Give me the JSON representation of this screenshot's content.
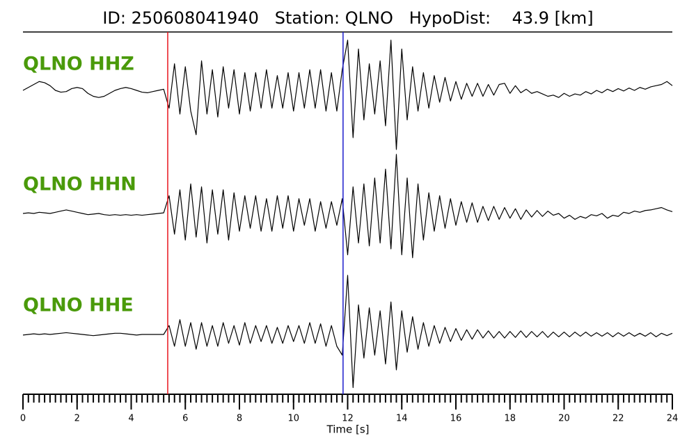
{
  "chart_data": {
    "type": "line",
    "title": "ID: 250608041940   Station: QLNO   HypoDist:    43.9 [km]",
    "x_label": "Time [s]",
    "xlim": [
      0,
      24
    ],
    "xticks": [
      0,
      2,
      4,
      6,
      8,
      10,
      12,
      14,
      16,
      18,
      20,
      22,
      24
    ],
    "minor_tick_step": 0.2,
    "label_color": "#4a9a0a",
    "picks": [
      {
        "time": 5.35,
        "color": "#e8141c"
      },
      {
        "time": 11.83,
        "color": "#1c1ccc"
      }
    ],
    "x": [
      0,
      0.2,
      0.4,
      0.6,
      0.8,
      1,
      1.2,
      1.4,
      1.6,
      1.8,
      2,
      2.2,
      2.4,
      2.6,
      2.8,
      3,
      3.2,
      3.4,
      3.6,
      3.8,
      4,
      4.2,
      4.4,
      4.6,
      4.8,
      5,
      5.2,
      5.4,
      5.6,
      5.8,
      6,
      6.2,
      6.4,
      6.6,
      6.8,
      7,
      7.2,
      7.4,
      7.6,
      7.8,
      8,
      8.2,
      8.4,
      8.6,
      8.8,
      9,
      9.2,
      9.4,
      9.6,
      9.8,
      10,
      10.2,
      10.4,
      10.6,
      10.8,
      11,
      11.2,
      11.4,
      11.6,
      11.8,
      12,
      12.2,
      12.4,
      12.6,
      12.8,
      13,
      13.2,
      13.4,
      13.6,
      13.8,
      14,
      14.2,
      14.4,
      14.6,
      14.8,
      15,
      15.2,
      15.4,
      15.6,
      15.8,
      16,
      16.2,
      16.4,
      16.6,
      16.8,
      17,
      17.2,
      17.4,
      17.6,
      17.8,
      18,
      18.2,
      18.4,
      18.6,
      18.8,
      19,
      19.2,
      19.4,
      19.6,
      19.8,
      20,
      20.2,
      20.4,
      20.6,
      20.8,
      21,
      21.2,
      21.4,
      21.6,
      21.8,
      22,
      22.2,
      22.4,
      22.6,
      22.8,
      23,
      23.2,
      23.4,
      23.6,
      23.8,
      24
    ],
    "series": [
      {
        "name": "QLNO HHZ",
        "color": "#000000",
        "values": [
          0.0,
          0.05,
          0.1,
          0.15,
          0.13,
          0.08,
          0.0,
          -0.03,
          -0.02,
          0.03,
          0.05,
          0.03,
          -0.05,
          -0.1,
          -0.12,
          -0.1,
          -0.05,
          0.0,
          0.03,
          0.05,
          0.03,
          0.0,
          -0.03,
          -0.04,
          -0.02,
          0.0,
          0.02,
          -0.3,
          0.45,
          -0.4,
          0.4,
          -0.35,
          -0.75,
          0.5,
          -0.4,
          0.35,
          -0.45,
          0.4,
          -0.3,
          0.35,
          -0.4,
          0.3,
          -0.35,
          0.3,
          -0.3,
          0.35,
          -0.3,
          0.25,
          -0.3,
          0.3,
          -0.35,
          0.3,
          -0.3,
          0.35,
          -0.3,
          0.35,
          -0.35,
          0.3,
          -0.35,
          0.35,
          0.85,
          -0.8,
          0.7,
          -0.5,
          0.45,
          -0.4,
          0.5,
          -0.6,
          0.85,
          -1.0,
          0.7,
          -0.5,
          0.4,
          -0.35,
          0.3,
          -0.3,
          0.25,
          -0.2,
          0.22,
          -0.18,
          0.15,
          -0.15,
          0.12,
          -0.1,
          0.12,
          -0.1,
          0.1,
          -0.08,
          0.1,
          0.12,
          -0.05,
          0.08,
          -0.04,
          0.02,
          -0.05,
          -0.02,
          -0.06,
          -0.1,
          -0.08,
          -0.12,
          -0.05,
          -0.1,
          -0.06,
          -0.08,
          -0.02,
          -0.06,
          0.0,
          -0.04,
          0.02,
          -0.02,
          0.03,
          -0.01,
          0.04,
          0.0,
          0.05,
          0.02,
          0.06,
          0.08,
          0.1,
          0.15,
          0.08
        ]
      },
      {
        "name": "QLNO HHN",
        "color": "#000000",
        "values": [
          0.0,
          0.01,
          0.0,
          0.02,
          0.01,
          0.0,
          0.02,
          0.04,
          0.06,
          0.04,
          0.02,
          0.0,
          -0.02,
          -0.01,
          0.0,
          -0.02,
          -0.03,
          -0.02,
          -0.03,
          -0.02,
          -0.03,
          -0.02,
          -0.03,
          -0.02,
          -0.01,
          0.0,
          0.01,
          0.3,
          -0.35,
          0.4,
          -0.45,
          0.5,
          -0.4,
          0.45,
          -0.5,
          0.4,
          -0.35,
          0.4,
          -0.45,
          0.35,
          -0.3,
          0.3,
          -0.25,
          0.3,
          -0.3,
          0.25,
          -0.3,
          0.3,
          -0.25,
          0.3,
          -0.3,
          0.25,
          -0.2,
          0.25,
          -0.3,
          0.2,
          -0.25,
          0.2,
          -0.2,
          0.25,
          -0.7,
          0.45,
          -0.5,
          0.5,
          -0.55,
          0.6,
          -0.5,
          0.75,
          -0.6,
          1.0,
          -0.7,
          0.6,
          -0.75,
          0.5,
          -0.45,
          0.35,
          -0.3,
          0.3,
          -0.25,
          0.25,
          -0.2,
          0.2,
          -0.15,
          0.18,
          -0.15,
          0.12,
          -0.12,
          0.12,
          -0.1,
          0.1,
          -0.08,
          0.08,
          -0.1,
          0.06,
          -0.06,
          0.05,
          -0.05,
          0.04,
          -0.03,
          0.0,
          -0.08,
          -0.03,
          -0.1,
          -0.05,
          -0.08,
          -0.02,
          -0.04,
          0.0,
          -0.08,
          -0.03,
          -0.05,
          0.02,
          0.0,
          0.04,
          0.02,
          0.05,
          0.06,
          0.08,
          0.1,
          0.06,
          0.03
        ]
      },
      {
        "name": "QLNO HHE",
        "color": "#000000",
        "values": [
          -0.01,
          0.0,
          0.01,
          0.0,
          0.01,
          0.0,
          0.01,
          0.02,
          0.03,
          0.02,
          0.01,
          0.0,
          -0.01,
          -0.02,
          -0.01,
          0.0,
          0.01,
          0.02,
          0.02,
          0.01,
          0.0,
          -0.01,
          0.0,
          0.0,
          0.0,
          0.0,
          0.0,
          0.15,
          -0.2,
          0.25,
          -0.2,
          0.2,
          -0.25,
          0.2,
          -0.2,
          0.15,
          -0.2,
          0.2,
          -0.15,
          0.15,
          -0.18,
          0.2,
          -0.15,
          0.15,
          -0.12,
          0.15,
          -0.15,
          0.12,
          -0.15,
          0.15,
          -0.12,
          0.15,
          -0.15,
          0.2,
          -0.15,
          0.18,
          -0.2,
          0.15,
          -0.2,
          -0.35,
          1.0,
          -0.9,
          0.5,
          -0.4,
          0.45,
          -0.35,
          0.4,
          -0.5,
          0.55,
          -0.6,
          0.4,
          -0.3,
          0.3,
          -0.25,
          0.2,
          -0.2,
          0.15,
          -0.15,
          0.12,
          -0.12,
          0.1,
          -0.1,
          0.08,
          -0.08,
          0.08,
          -0.06,
          0.06,
          -0.06,
          0.05,
          -0.06,
          0.05,
          -0.05,
          0.06,
          -0.05,
          0.05,
          -0.04,
          0.05,
          -0.05,
          0.04,
          -0.04,
          0.04,
          -0.04,
          0.04,
          -0.03,
          0.04,
          -0.03,
          0.03,
          -0.03,
          0.03,
          -0.04,
          0.03,
          -0.03,
          0.03,
          -0.03,
          0.02,
          -0.03,
          0.03,
          -0.04,
          0.02,
          -0.02,
          0.02
        ]
      }
    ]
  }
}
